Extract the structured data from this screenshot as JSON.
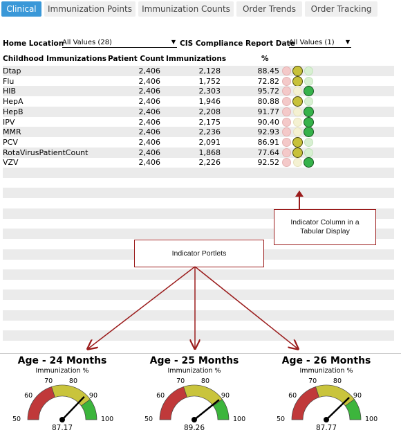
{
  "tabs": [
    {
      "label": "Clinical",
      "active": true
    },
    {
      "label": "Immunization Points",
      "active": false
    },
    {
      "label": "Immunization Counts",
      "active": false
    },
    {
      "label": "Order Trends",
      "active": false
    },
    {
      "label": "Order Tracking",
      "active": false
    }
  ],
  "filters": {
    "home_location_label": "Home Location",
    "home_location_value": "All Values (28)",
    "report_date_label": "CIS Compliance Report Date",
    "report_date_value": "All Values (1)"
  },
  "table": {
    "headers": [
      "Childhood Immunizations",
      "Patient Count",
      "Immunizations",
      "%"
    ],
    "rows": [
      {
        "name": "Dtap",
        "patients": "2,406",
        "immunizations": "2,128",
        "pct": "88.45",
        "indicator": "yellow"
      },
      {
        "name": "Flu",
        "patients": "2,406",
        "immunizations": "1,752",
        "pct": "72.82",
        "indicator": "yellow"
      },
      {
        "name": "HIB",
        "patients": "2,406",
        "immunizations": "2,303",
        "pct": "95.72",
        "indicator": "green"
      },
      {
        "name": "HepA",
        "patients": "2,406",
        "immunizations": "1,946",
        "pct": "80.88",
        "indicator": "yellow"
      },
      {
        "name": "HepB",
        "patients": "2,406",
        "immunizations": "2,208",
        "pct": "91.77",
        "indicator": "green"
      },
      {
        "name": "IPV",
        "patients": "2,406",
        "immunizations": "2,175",
        "pct": "90.40",
        "indicator": "green"
      },
      {
        "name": "MMR",
        "patients": "2,406",
        "immunizations": "2,236",
        "pct": "92.93",
        "indicator": "green"
      },
      {
        "name": "PCV",
        "patients": "2,406",
        "immunizations": "2,091",
        "pct": "86.91",
        "indicator": "yellow"
      },
      {
        "name": "RotaVirusPatientCount",
        "patients": "2,406",
        "immunizations": "1,868",
        "pct": "77.64",
        "indicator": "yellow"
      },
      {
        "name": "VZV",
        "patients": "2,406",
        "immunizations": "2,226",
        "pct": "92.52",
        "indicator": "green"
      }
    ]
  },
  "callouts": {
    "indicator_column": "Indicator Column in a Tabular Display",
    "indicator_portlets": "Indicator Portlets"
  },
  "gauges": [
    {
      "title": "Age - 24 Months",
      "subtitle": "Immunization %",
      "value": 87.17,
      "value_text": "87.17"
    },
    {
      "title": "Age - 25 Months",
      "subtitle": "Immunization %",
      "value": 89.26,
      "value_text": "89.26"
    },
    {
      "title": "Age - 26 Months",
      "subtitle": "Immunization %",
      "value": 87.77,
      "value_text": "87.77"
    }
  ],
  "gauge_ticks": [
    "50",
    "60",
    "70",
    "80",
    "90",
    "100"
  ],
  "gauge_range": [
    50,
    100
  ],
  "colors": {
    "tab_active": "#3a98d8",
    "callout_border": "#9a1b1b",
    "gauge_red": "#c0393a",
    "gauge_yellow": "#c9c43c",
    "gauge_green": "#3cb53c"
  }
}
